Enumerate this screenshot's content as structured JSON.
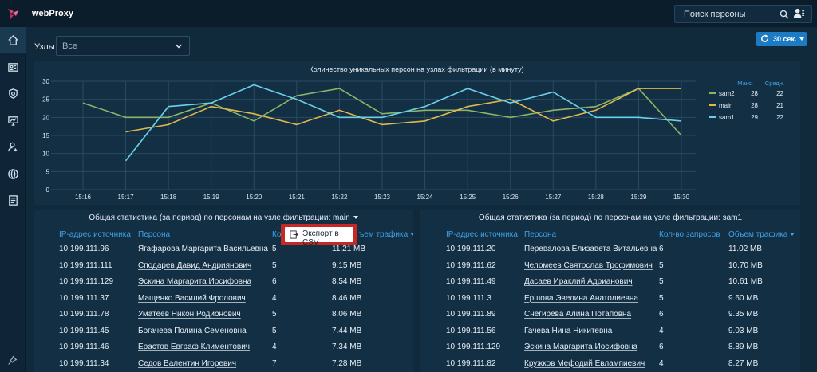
{
  "app": {
    "title": "webProxy"
  },
  "header": {
    "search_placeholder": "Поиск персоны"
  },
  "filter": {
    "nodes_label": "Узлы",
    "nodes_value": "Все",
    "refresh_label": "30 сек."
  },
  "colors": {
    "sam2": "#8db36a",
    "main": "#e0b84d",
    "sam1": "#6ad1e8",
    "accent": "#3fa2e6",
    "button": "#1c7bc2",
    "highlight": "#c62828"
  },
  "chart_data": {
    "type": "line",
    "title": "Количество уникальных персон на узлах фильтрации (в минуту)",
    "categories": [
      "15:16",
      "15:17",
      "15:18",
      "15:19",
      "15:20",
      "15:21",
      "15:22",
      "15:23",
      "15:24",
      "15:25",
      "15:26",
      "15:27",
      "15:28",
      "15:29",
      "15:30"
    ],
    "ylim": [
      0,
      30
    ],
    "yticks": [
      "0",
      "5",
      "10",
      "15",
      "20",
      "25",
      "30"
    ],
    "legend_headers": {
      "max": "Макс.",
      "avg": "Средн."
    },
    "series": [
      {
        "name": "sam2",
        "values": [
          24,
          20,
          20,
          24,
          19,
          26,
          28,
          21,
          22,
          22,
          20,
          22,
          23,
          28,
          15
        ],
        "max": "28",
        "avg": "22",
        "color": "#8db36a"
      },
      {
        "name": "main",
        "values": [
          null,
          16,
          18,
          23,
          21,
          18,
          22,
          18,
          19,
          23,
          25,
          19,
          22,
          28,
          28
        ],
        "max": "28",
        "avg": "21",
        "color": "#e0b84d"
      },
      {
        "name": "sam1",
        "values": [
          null,
          8,
          23,
          24,
          29,
          25,
          20,
          20,
          23,
          28,
          24,
          27,
          20,
          20,
          19
        ],
        "max": "29",
        "avg": "22",
        "color": "#6ad1e8"
      }
    ]
  },
  "left_table": {
    "title": "Общая статистика (за период) по персонам на узле фильтрации: main",
    "columns": {
      "ip": "IP-адрес источника",
      "person": "Персона",
      "requests": "Кол",
      "traffic": "ъем трафика"
    },
    "export_label": "Экспорт в CSV",
    "rows": [
      {
        "ip": "10.199.111.96",
        "person": "Ягафарова Маргарита Васильевна",
        "requests": "5",
        "traffic": "11.21 MB"
      },
      {
        "ip": "10.199.111.111",
        "person": "Сподарев Давид Андриянович",
        "requests": "5",
        "traffic": "9.15 MB"
      },
      {
        "ip": "10.199.111.129",
        "person": "Эскина Маргарита Иосифовна",
        "requests": "6",
        "traffic": "8.54 MB"
      },
      {
        "ip": "10.199.111.37",
        "person": "Мащенко Василий Фролович",
        "requests": "4",
        "traffic": "8.46 MB"
      },
      {
        "ip": "10.199.111.78",
        "person": "Уматеев Никон Родионович",
        "requests": "5",
        "traffic": "8.06 MB"
      },
      {
        "ip": "10.199.111.45",
        "person": "Богачева Полина Семеновна",
        "requests": "5",
        "traffic": "7.44 MB"
      },
      {
        "ip": "10.199.111.46",
        "person": "Ерастов Евграф Климентович",
        "requests": "4",
        "traffic": "7.34 MB"
      },
      {
        "ip": "10.199.111.34",
        "person": "Седов Валентин Игоревич",
        "requests": "7",
        "traffic": "7.28 MB"
      }
    ]
  },
  "right_table": {
    "title": "Общая статистика (за период) по персонам на узле фильтрации: sam1",
    "columns": {
      "ip": "IP-адрес источника",
      "person": "Персона",
      "requests": "Кол-во запросов",
      "traffic": "Объем трафика"
    },
    "rows": [
      {
        "ip": "10.199.111.20",
        "person": "Перевалова Елизавета Витальевна",
        "requests": "6",
        "traffic": "11.02 MB"
      },
      {
        "ip": "10.199.111.62",
        "person": "Челомеев Святослав Трофимович",
        "requests": "5",
        "traffic": "10.70 MB"
      },
      {
        "ip": "10.199.111.49",
        "person": "Дасаев Ираклий Адрианович",
        "requests": "5",
        "traffic": "10.61 MB"
      },
      {
        "ip": "10.199.111.3",
        "person": "Ершова Эвелина Анатолиевна",
        "requests": "5",
        "traffic": "9.60 MB"
      },
      {
        "ip": "10.199.111.89",
        "person": "Снегирева Алина Потаповна",
        "requests": "6",
        "traffic": "9.35 MB"
      },
      {
        "ip": "10.199.111.56",
        "person": "Гачева Нина Никитевна",
        "requests": "4",
        "traffic": "9.03 MB"
      },
      {
        "ip": "10.199.111.129",
        "person": "Эскина Маргарита Иосифовна",
        "requests": "6",
        "traffic": "8.89 MB"
      },
      {
        "ip": "10.199.111.82",
        "person": "Кружков Мефодий Евлампиевич",
        "requests": "4",
        "traffic": "8.27 MB"
      }
    ]
  }
}
